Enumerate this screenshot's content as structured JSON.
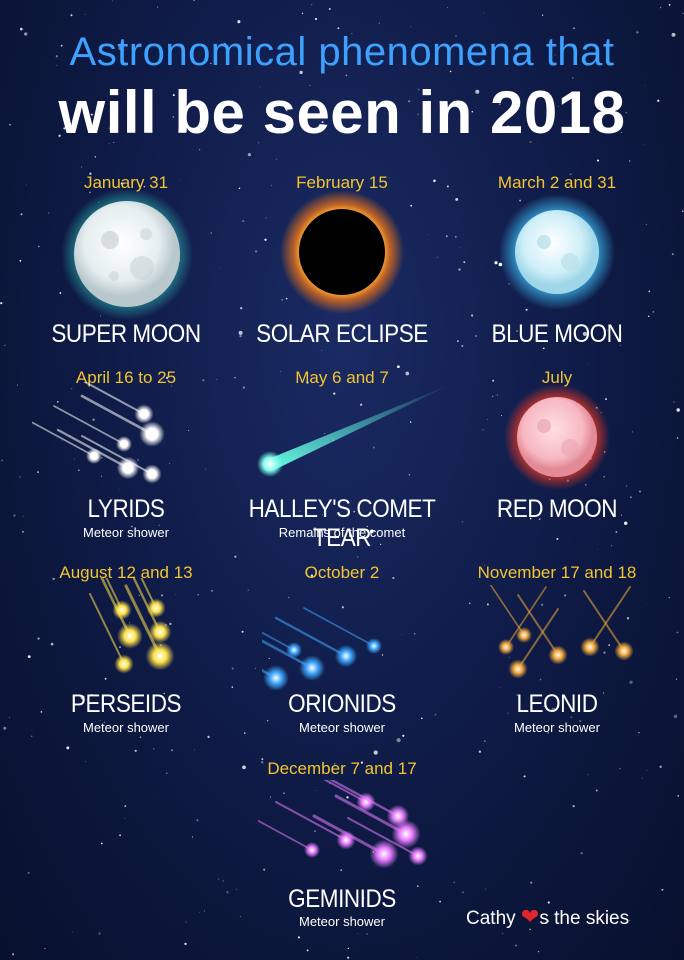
{
  "title_line1": "Astronomical phenomena that",
  "title_line2": "will be seen in 2018",
  "events": [
    {
      "date": "January 31",
      "name": "SUPER MOON",
      "sub": "",
      "icon": "super-moon-icon"
    },
    {
      "date": "February 15",
      "name": "SOLAR ECLIPSE",
      "sub": "",
      "icon": "solar-eclipse-icon"
    },
    {
      "date": "March 2 and 31",
      "name": "BLUE MOON",
      "sub": "",
      "icon": "blue-moon-icon"
    },
    {
      "date": "April 16 to 25",
      "name": "LYRIDS",
      "sub": "Meteor shower",
      "icon": "meteor-shower-icon"
    },
    {
      "date": "May 6 and 7",
      "name": "HALLEY'S COMET TEAR",
      "sub": "Remains of the comet",
      "icon": "comet-icon"
    },
    {
      "date": "July",
      "name": "RED MOON",
      "sub": "",
      "icon": "red-moon-icon"
    },
    {
      "date": "August 12 and 13",
      "name": "PERSEIDS",
      "sub": "Meteor shower",
      "icon": "meteor-shower-icon"
    },
    {
      "date": "October 2",
      "name": "ORIONIDS",
      "sub": "Meteor shower",
      "icon": "meteor-shower-icon"
    },
    {
      "date": "November 17 and 18",
      "name": "LEONID",
      "sub": "Meteor shower",
      "icon": "meteor-shower-icon"
    },
    {
      "date": "December 7 and 17",
      "name": "GEMINIDS",
      "sub": "Meteor shower",
      "icon": "meteor-shower-icon"
    }
  ],
  "signature": {
    "before": "Cathy",
    "after": "s the skies",
    "icon": "heart-icon"
  },
  "colors": {
    "background": "#0e1a44",
    "title_blue": "#3da2ff",
    "date_yellow": "#f3c431",
    "super_moon_glow": "#33d6c8",
    "eclipse_ring": "#ff9a1a",
    "blue_moon_glow": "#3fc6ff",
    "red_moon_glow": "#ff3a22",
    "lyrids": "#ffffff",
    "halley": "#66ffe6",
    "perseids": "#ffe24a",
    "orionids": "#3fa7ff",
    "leonid": "#f3a83a",
    "geminids": "#e77dff",
    "heart": "#e0262b"
  }
}
